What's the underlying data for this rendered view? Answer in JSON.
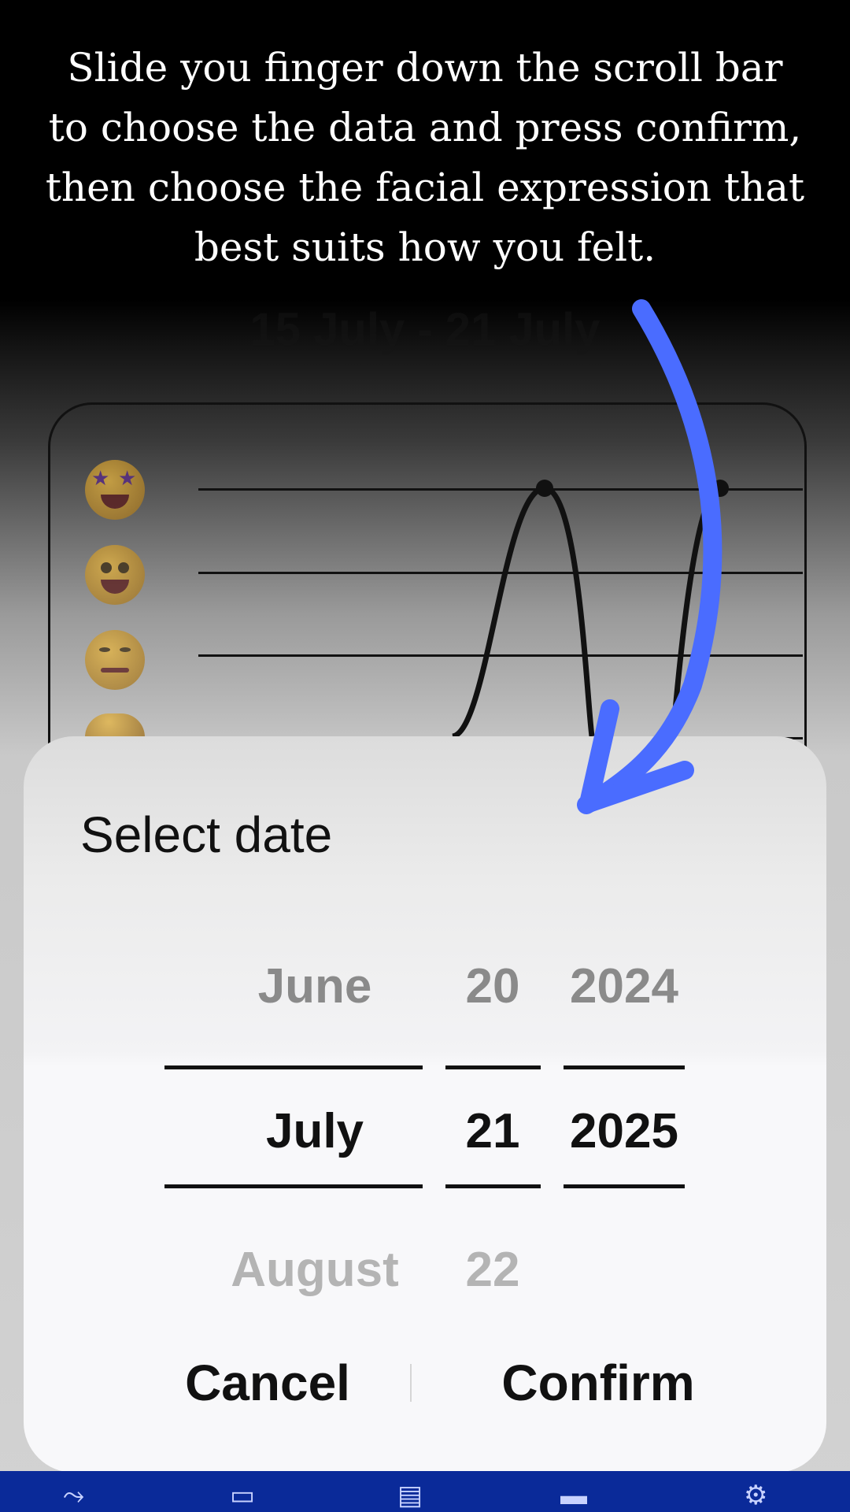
{
  "instruction": {
    "line1": "Slide you finger down the scroll bar",
    "line2": "to choose the data and press confirm,",
    "line3": "then choose the facial expression that",
    "line4": "best suits how you felt."
  },
  "week_range": "15 July - 21 July",
  "mood_chart": {
    "emoji_icons": [
      "star-struck-icon",
      "grinning-icon",
      "woozy-icon",
      "laughing-icon"
    ]
  },
  "date_picker": {
    "title": "Select date",
    "months": {
      "prev": "June",
      "selected": "July",
      "next": "August"
    },
    "days": {
      "prev": "20",
      "selected": "21",
      "next": "22"
    },
    "years": {
      "prev": "2024",
      "selected": "2025"
    },
    "cancel_label": "Cancel",
    "confirm_label": "Confirm"
  },
  "colors": {
    "arrow": "#4a6cff",
    "nav_bar": "#0a2a99"
  },
  "bottom_nav": {
    "icons": [
      "chart-icon",
      "profile-card-icon",
      "printer-icon",
      "browser-window-icon",
      "settings-icon"
    ]
  }
}
